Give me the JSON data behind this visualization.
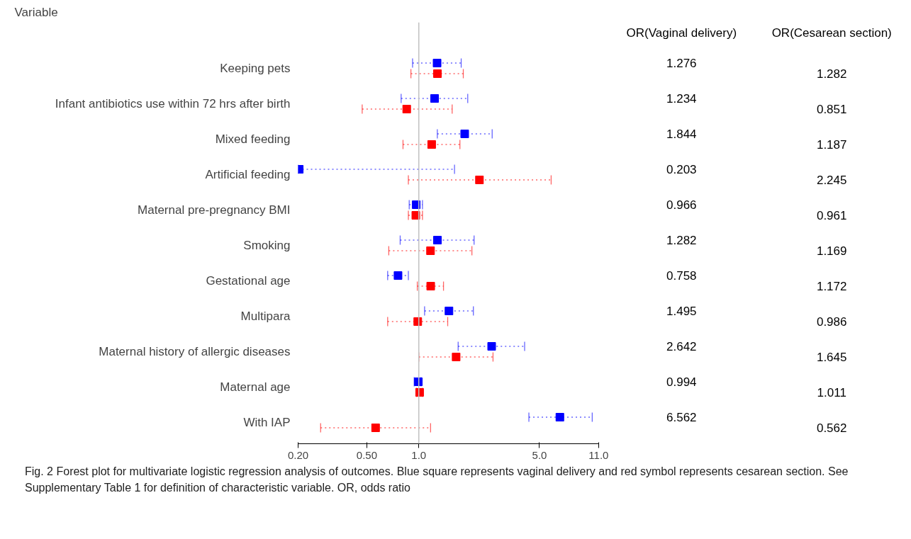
{
  "chart_data": {
    "type": "scatter",
    "orientation": "horizontal",
    "log": "x",
    "title": "Variable",
    "categories": [
      "Keeping pets",
      "Infant antibiotics use within 72 hrs after birth",
      "Mixed feeding",
      "Artificial feeding",
      "Maternal pre-pregnancy BMI",
      "Smoking",
      "Gestational age",
      "Multipara",
      "Maternal history of allergic diseases",
      "Maternal age",
      "With IAP"
    ],
    "series": [
      {
        "color": "#0000ff",
        "values": [
          1.276,
          1.234,
          1.844,
          0.203,
          0.966,
          1.282,
          0.758,
          1.495,
          2.642,
          0.994,
          6.562
        ],
        "errors": [
          [
            0.92,
            1.76
          ],
          [
            0.79,
            1.92
          ],
          [
            1.28,
            2.66
          ],
          [
            0.2,
            1.61
          ],
          [
            0.88,
            1.05
          ],
          [
            0.78,
            2.09
          ],
          [
            0.66,
            0.87
          ],
          [
            1.08,
            2.07
          ],
          [
            1.69,
            4.1
          ],
          [
            0.94,
            1.03
          ],
          [
            4.34,
            10.1
          ]
        ]
      },
      {
        "color": "#ff0000",
        "values": [
          1.282,
          0.851,
          1.187,
          2.245,
          0.961,
          1.169,
          1.172,
          0.986,
          1.645,
          1.011,
          0.562
        ],
        "errors": [
          [
            0.9,
            1.81
          ],
          [
            0.47,
            1.56
          ],
          [
            0.81,
            1.73
          ],
          [
            0.87,
            5.84
          ],
          [
            0.87,
            1.05
          ],
          [
            0.67,
            2.03
          ],
          [
            0.98,
            1.39
          ],
          [
            0.66,
            1.47
          ],
          [
            1.0,
            2.69
          ],
          [
            0.97,
            1.05
          ],
          [
            0.27,
            1.17
          ]
        ]
      }
    ],
    "xlim": [
      0.2,
      11
    ],
    "xticks": [
      {
        "value": 0.2,
        "label": "0.20"
      },
      {
        "value": 0.5,
        "label": "0.50"
      },
      {
        "value": 1,
        "label": "1.0"
      },
      {
        "value": 5,
        "label": "5.0"
      },
      {
        "value": 11,
        "label": "11.0"
      }
    ],
    "ref_lines": [
      {
        "axis": "x",
        "value": 1,
        "color": "#c0c0c0"
      }
    ],
    "marker": "square",
    "line_style": "dotted",
    "grid": false,
    "data_labels": true,
    "annotations": [
      "OR(Vaginal delivery)",
      "OR(Cesarean section)",
      "Fig. 2 Forest plot for multivariate logistic regression analysis of outcomes. Blue square represents vaginal delivery and red symbol represents cesarean section. See Supplementary Table 1 for definition of characteristic variable. OR, odds ratio"
    ]
  }
}
